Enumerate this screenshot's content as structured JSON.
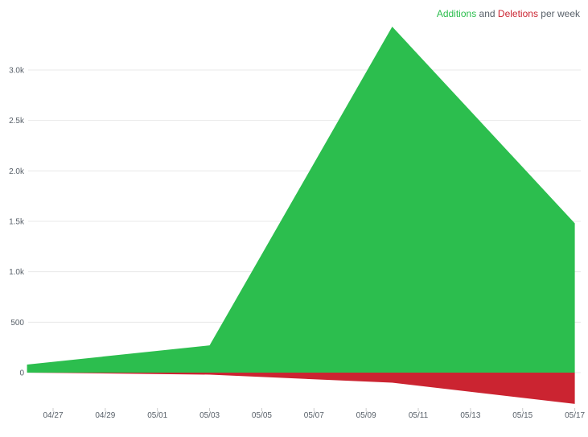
{
  "legend": {
    "additions": "Additions",
    "and": "and",
    "deletions": "Deletions",
    "suffix": "per week"
  },
  "colors": {
    "additions": "#2cbe4e",
    "deletions": "#cb2431",
    "axis_text": "#586069",
    "grid": "#e8e8e8"
  },
  "chart_data": {
    "type": "area",
    "x_axis_ticks": [
      "04/27",
      "04/29",
      "05/01",
      "05/03",
      "05/05",
      "05/07",
      "05/09",
      "05/11",
      "05/13",
      "05/15",
      "05/17"
    ],
    "y_axis_ticks": [
      "0",
      "500",
      "1.0k",
      "1.5k",
      "2.0k",
      "2.5k",
      "3.0k"
    ],
    "ylim": [
      -330,
      3600
    ],
    "grid": true,
    "legend_position": "top-right",
    "series": [
      {
        "name": "Additions",
        "x": [
          "2019-04-26",
          "2019-05-03",
          "2019-05-10",
          "2019-05-17"
        ],
        "values": [
          80,
          270,
          3430,
          1480
        ]
      },
      {
        "name": "Deletions",
        "x": [
          "2019-04-26",
          "2019-05-03",
          "2019-05-10",
          "2019-05-17"
        ],
        "values": [
          0,
          -20,
          -100,
          -310
        ]
      }
    ]
  }
}
